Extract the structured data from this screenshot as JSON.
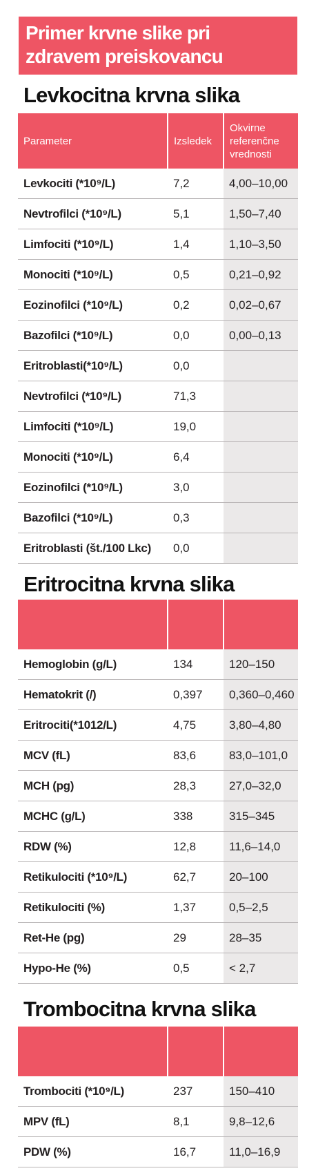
{
  "banner": {
    "line1": "Primer krvne slike pri",
    "line2": "zdravem preiskovancu"
  },
  "leukocyte": {
    "title": "Levkocitna krvna slika",
    "headers": {
      "param": "Parameter",
      "result": "Izsledek",
      "ref_line1": "Okvirne",
      "ref_line2": "referenčne",
      "ref_line3": "vrednosti"
    },
    "rows": [
      {
        "param": "Levkociti (*10⁹/L)",
        "value": "7,2",
        "ref": "4,00–10,00"
      },
      {
        "param": "Nevtrofilci (*10⁹/L)",
        "value": "5,1",
        "ref": "1,50–7,40"
      },
      {
        "param": "Limfociti (*10⁹/L)",
        "value": "1,4",
        "ref": "1,10–3,50"
      },
      {
        "param": "Monociti (*10⁹/L)",
        "value": "0,5",
        "ref": "0,21–0,92"
      },
      {
        "param": "Eozinofilci (*10⁹/L)",
        "value": "0,2",
        "ref": "0,02–0,67"
      },
      {
        "param": "Bazofilci (*10⁹/L)",
        "value": "0,0",
        "ref": "0,00–0,13"
      },
      {
        "param": "Eritroblasti(*10⁹/L)",
        "value": "0,0",
        "ref": ""
      },
      {
        "param": "Nevtrofilci (*10⁹/L)",
        "value": "71,3",
        "ref": ""
      },
      {
        "param": "Limfociti  (*10⁹/L)",
        "value": "19,0",
        "ref": ""
      },
      {
        "param": "Monociti (*10⁹/L)",
        "value": "6,4",
        "ref": ""
      },
      {
        "param": "Eozinofilci (*10⁹/L)",
        "value": "3,0",
        "ref": ""
      },
      {
        "param": "Bazofilci (*10⁹/L)",
        "value": "0,3",
        "ref": ""
      },
      {
        "param": "Eritroblasti (št./100 Lkc)",
        "value": "0,0",
        "ref": ""
      }
    ]
  },
  "erythrocyte": {
    "title": "Eritrocitna krvna slika",
    "rows": [
      {
        "param": "Hemoglobin (g/L)",
        "value": "134",
        "ref": "120–150"
      },
      {
        "param": "Hematokrit (/)",
        "value": "0,397",
        "ref": "0,360–0,460"
      },
      {
        "param": "Eritrociti(*1012/L)",
        "value": "4,75",
        "ref": "3,80–4,80"
      },
      {
        "param": "MCV (fL)",
        "value": "83,6",
        "ref": "83,0–101,0"
      },
      {
        "param": "MCH (pg)",
        "value": "28,3",
        "ref": "27,0–32,0"
      },
      {
        "param": "MCHC (g/L)",
        "value": "338",
        "ref": "315–345"
      },
      {
        "param": "RDW (%)",
        "value": "12,8",
        "ref": "11,6–14,0"
      },
      {
        "param": "Retikulociti (*10⁹/L)",
        "value": "62,7",
        "ref": "20–100"
      },
      {
        "param": "Retikulociti (%)",
        "value": "1,37",
        "ref": "0,5–2,5"
      },
      {
        "param": "Ret-He (pg)",
        "value": "29",
        "ref": "28–35"
      },
      {
        "param": "Hypo-He (%)",
        "value": "0,5",
        "ref": "< 2,7"
      }
    ]
  },
  "thrombocyte": {
    "title": "Trombocitna krvna slika",
    "rows": [
      {
        "param": "Trombociti (*10⁹/L)",
        "value": "237",
        "ref": "150–410"
      },
      {
        "param": "MPV (fL)",
        "value": "8,1",
        "ref": "9,8–12,6"
      },
      {
        "param": "PDW (%)",
        "value": "16,7",
        "ref": "11,0–16,9"
      }
    ]
  },
  "colors": {
    "accent": "#ee5564",
    "ref_column": "#ebe9e9",
    "divider": "#b7b3b4"
  }
}
